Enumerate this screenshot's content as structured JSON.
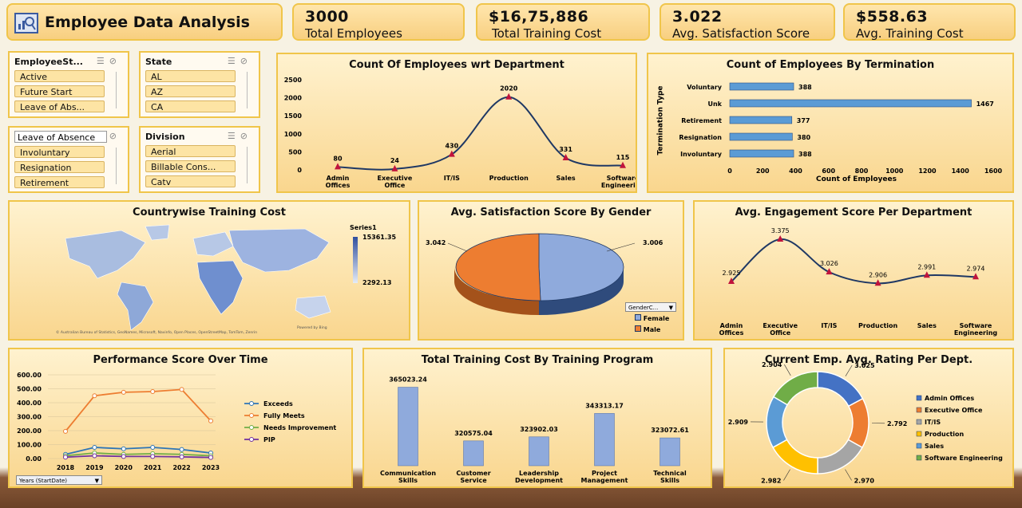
{
  "header": {
    "title": "Employee Data Analysis",
    "icon": "analytics-icon"
  },
  "kpis": [
    {
      "value": "3000",
      "label": "Total Employees"
    },
    {
      "value": "$16,75,886",
      "label": "Total Training Cost"
    },
    {
      "value": "3.022",
      "label": "Avg. Satisfaction Score"
    },
    {
      "value": "$558.63",
      "label": "Avg. Training Cost"
    }
  ],
  "slicers": {
    "employee_status": {
      "title": "EmployeeSt...",
      "items": [
        "Active",
        "Future Start",
        "Leave of Abs..."
      ]
    },
    "state": {
      "title": "State",
      "items": [
        "AL",
        "AZ",
        "CA"
      ]
    },
    "termination": {
      "title": "Leave of Absence",
      "items": [
        "Involuntary",
        "Resignation",
        "Retirement"
      ]
    },
    "division": {
      "title": "Division",
      "items": [
        "Aerial",
        "Billable Cons...",
        "Catv"
      ]
    }
  },
  "dept_count": {
    "title": "Count Of Employees wrt Department"
  },
  "termination_chart": {
    "title": "Count of Employees By Termination",
    "ylabel": "Termination Type",
    "xlabel": "Count of Employees"
  },
  "map": {
    "title": "Countrywise Training Cost",
    "legend_title": "Series1",
    "legend_max": "15361.35",
    "legend_min": "2292.13",
    "footer_left": "© Australian Bureau of Statistics, GeoNames, Microsoft, Navinfo, Open Places, OpenStreetMap, TomTom, Zenrin",
    "footer_right": "Powered by Bing"
  },
  "gender_chart": {
    "title": "Avg. Satisfaction Score By Gender",
    "filter_label": "GenderC..."
  },
  "engagement_chart": {
    "title": "Avg. Engagement Score Per Department"
  },
  "performance_chart": {
    "title": "Performance Score Over Time",
    "filter_label": "Years (StartDate)"
  },
  "training_chart": {
    "title": "Total Training Cost By Training Program"
  },
  "rating_chart": {
    "title": "Current Emp. Avg. Rating Per Dept."
  },
  "chart_data": [
    {
      "id": "dept",
      "type": "line",
      "categories": [
        "Admin Offices",
        "Executive Office",
        "IT/IS",
        "Production",
        "Sales",
        "Software Engineering"
      ],
      "values": [
        80,
        24,
        430,
        2020,
        331,
        115
      ],
      "ylim": [
        0,
        2500
      ],
      "yticks": [
        0,
        500,
        1000,
        1500,
        2000,
        2500
      ],
      "color": "#1f3864"
    },
    {
      "id": "termination",
      "type": "bar",
      "orientation": "horizontal",
      "categories": [
        "Voluntary",
        "Unk",
        "Retirement",
        "Resignation",
        "Involuntary"
      ],
      "values": [
        388,
        1467,
        377,
        380,
        388
      ],
      "xlim": [
        0,
        1600
      ],
      "xticks": [
        0,
        200,
        400,
        600,
        800,
        1000,
        1200,
        1400,
        1600
      ],
      "color": "#5b9bd5"
    },
    {
      "id": "gender",
      "type": "pie",
      "labels": [
        "Female",
        "Male"
      ],
      "values": [
        3.006,
        3.042
      ],
      "colors": [
        "#8faadc",
        "#ed7d31"
      ]
    },
    {
      "id": "engagement",
      "type": "line",
      "categories": [
        "Admin Offices",
        "Executive Office",
        "IT/IS",
        "Production",
        "Sales",
        "Software Engineering"
      ],
      "values": [
        2.925,
        3.375,
        3.026,
        2.906,
        2.991,
        2.974
      ],
      "color": "#1f3864"
    },
    {
      "id": "performance",
      "type": "line",
      "categories": [
        "2018",
        "2019",
        "2020",
        "2021",
        "2022",
        "2023"
      ],
      "ylim": [
        0,
        600
      ],
      "yticks": [
        "0.00",
        "100.00",
        "200.00",
        "300.00",
        "400.00",
        "500.00",
        "600.00"
      ],
      "series": [
        {
          "name": "Exceeds",
          "values": [
            30,
            80,
            70,
            80,
            65,
            40
          ],
          "color": "#2e75b6"
        },
        {
          "name": "Fully Meets",
          "values": [
            195,
            450,
            475,
            480,
            495,
            270
          ],
          "color": "#ed7d31"
        },
        {
          "name": "Needs Improvement",
          "values": [
            20,
            40,
            30,
            35,
            30,
            20
          ],
          "color": "#70ad47"
        },
        {
          "name": "PIP",
          "values": [
            10,
            20,
            15,
            15,
            12,
            8
          ],
          "color": "#7030a0"
        }
      ]
    },
    {
      "id": "training",
      "type": "bar",
      "categories": [
        "Communication Skills",
        "Customer Service",
        "Leadership Development",
        "Project Management",
        "Technical Skills"
      ],
      "values": [
        365023.24,
        320575.04,
        323902.03,
        343313.17,
        323072.61
      ],
      "labels": [
        "365023.24",
        "320575.04",
        "323902.03",
        "343313.17",
        "323072.61"
      ],
      "ylim": [
        300000,
        370000
      ],
      "color": "#8faadc"
    },
    {
      "id": "rating",
      "type": "pie",
      "donut": true,
      "labels": [
        "Admin Offices",
        "Executive Office",
        "IT/IS",
        "Production",
        "Sales",
        "Software Engineering"
      ],
      "values": [
        3.025,
        2.792,
        2.97,
        2.982,
        2.909,
        2.904
      ],
      "value_labels": [
        "3.025",
        "2.792",
        "2.970",
        "2.982",
        "2.909",
        "2.904"
      ],
      "colors": [
        "#4472c4",
        "#ed7d31",
        "#a5a5a5",
        "#ffc000",
        "#5b9bd5",
        "#70ad47"
      ]
    }
  ]
}
